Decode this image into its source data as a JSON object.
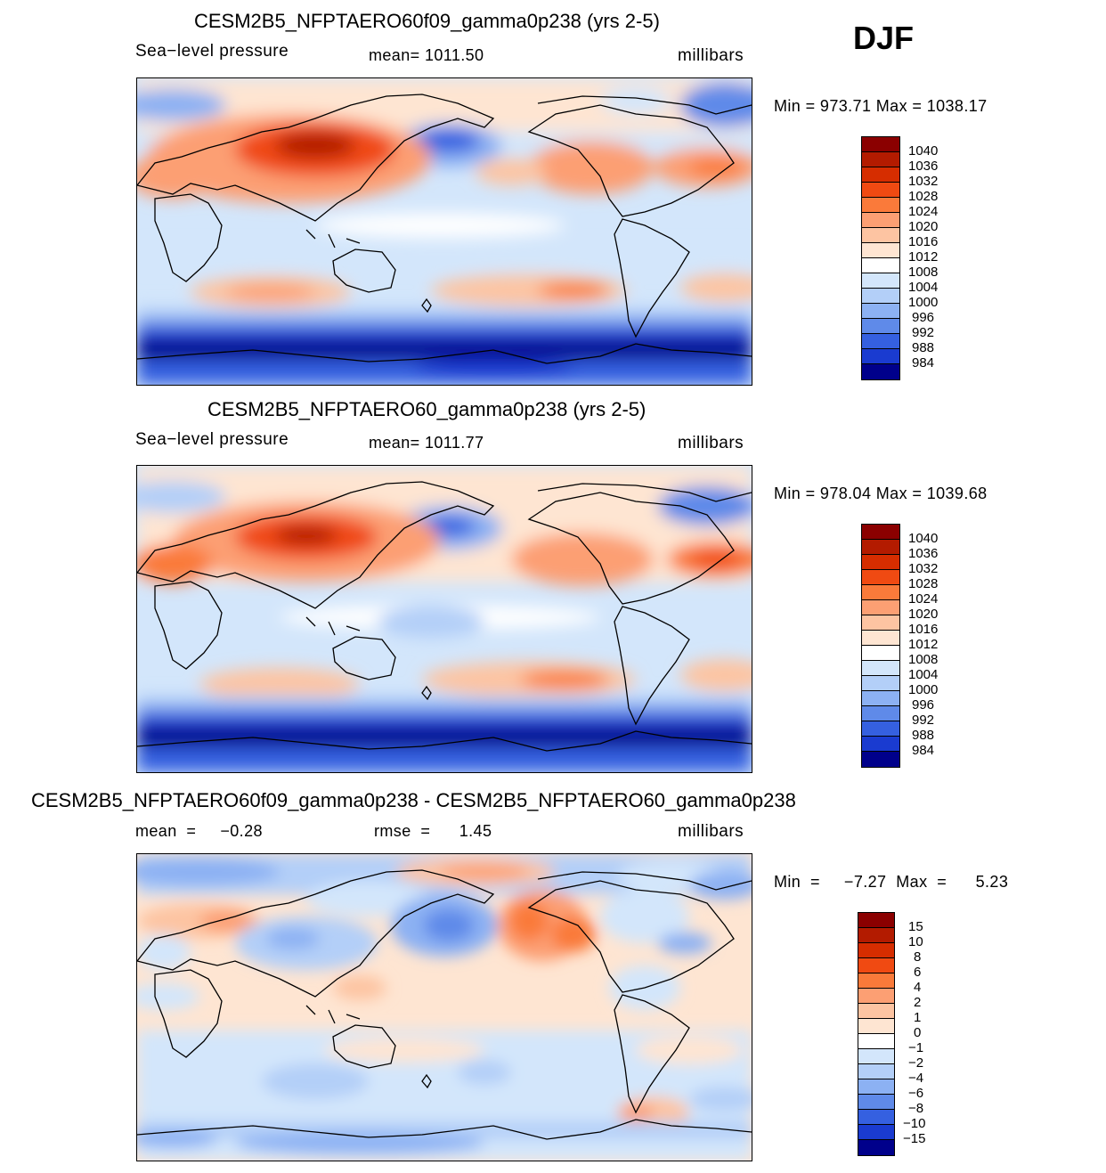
{
  "season": "DJF",
  "panels": [
    {
      "title": "CESM2B5_NFPTAERO60f09_gamma0p238 (yrs 2-5)",
      "left_label": "Sea−level  pressure",
      "center_label": "mean=  1011.50",
      "units": "millibars",
      "minmax": "Min  =  973.71  Max  =  1038.17"
    },
    {
      "title": "CESM2B5_NFPTAERO60_gamma0p238 (yrs 2-5)",
      "left_label": "Sea−level  pressure",
      "center_label": "mean=  1011.77",
      "units": "millibars",
      "minmax": "Min  =  978.04  Max  =  1039.68"
    },
    {
      "title": "CESM2B5_NFPTAERO60f09_gamma0p238 - CESM2B5_NFPTAERO60_gamma0p238",
      "left_label": "mean  =     −0.28",
      "center_label": "rmse  =      1.45",
      "units": "millibars",
      "minmax": "Min  =     −7.27  Max  =      5.23"
    }
  ],
  "colorbar_abs": {
    "labels": [
      "1040",
      "1036",
      "1032",
      "1028",
      "1024",
      "1020",
      "1016",
      "1012",
      "1008",
      "1004",
      "1000",
      "996",
      "992",
      "988",
      "984"
    ],
    "colors": [
      "#8b0000",
      "#b31b00",
      "#d62d00",
      "#f04a12",
      "#fa7a3a",
      "#fc9f73",
      "#fdc4a2",
      "#fee5d2",
      "#ffffff",
      "#d3e6fb",
      "#b3cff8",
      "#8cb1f3",
      "#5f8ae9",
      "#3560e0",
      "#1a3bd0",
      "#00008b"
    ]
  },
  "colorbar_diff": {
    "labels": [
      "15",
      "10",
      "8",
      "6",
      "4",
      "2",
      "1",
      "0",
      "−1",
      "−2",
      "−4",
      "−6",
      "−8",
      "−10",
      "−15"
    ],
    "colors": [
      "#8b0000",
      "#b31b00",
      "#d62d00",
      "#f04a12",
      "#fa7a3a",
      "#fc9f73",
      "#fdc4a2",
      "#fee5d2",
      "#ffffff",
      "#d3e6fb",
      "#b3cff8",
      "#8cb1f3",
      "#5f8ae9",
      "#3560e0",
      "#1a3bd0",
      "#00008b"
    ]
  }
}
